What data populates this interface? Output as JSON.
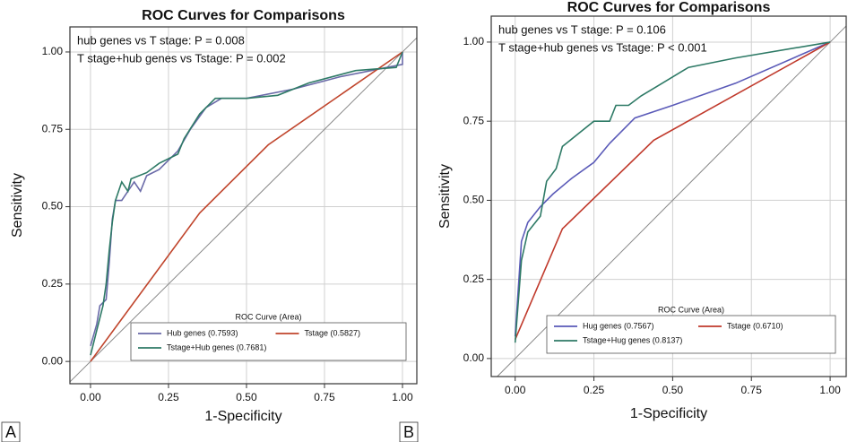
{
  "chart_data": [
    {
      "type": "line",
      "panel_label": "A",
      "title": "ROC Curves for Comparisons",
      "xlabel": "1-Specificity",
      "ylabel": "Sensitivity",
      "annotations": [
        "hub genes vs T stage: P = 0.008",
        "T stage+hub genes vs Tstage: P = 0.002"
      ],
      "legend_title": "ROC Curve (Area)",
      "grid": true,
      "legend": "lower right",
      "xlim": [
        -0.066,
        1.046
      ],
      "ylim": [
        -0.072,
        1.081
      ],
      "xticks": [
        {
          "value": 0,
          "label": "0.00"
        },
        {
          "value": 0.25,
          "label": "0.25"
        },
        {
          "value": 0.5,
          "label": "0.50"
        },
        {
          "value": 0.75,
          "label": "0.75"
        },
        {
          "value": 1,
          "label": "1.00"
        }
      ],
      "yticks": [
        {
          "value": 0,
          "label": "0.00"
        },
        {
          "value": 0.25,
          "label": "0.25"
        },
        {
          "value": 0.5,
          "label": "0.50"
        },
        {
          "value": 0.75,
          "label": "0.75"
        },
        {
          "value": 1,
          "label": "1.00"
        }
      ],
      "series": [
        {
          "name": "Hub genes (0.7593)",
          "color": "#6a6aa8",
          "x": [
            0,
            0.02,
            0.03,
            0.05,
            0.06,
            0.07,
            0.08,
            0.1,
            0.12,
            0.14,
            0.16,
            0.18,
            0.22,
            0.28,
            0.32,
            0.37,
            0.42,
            0.5,
            0.65,
            0.8,
            0.95,
            1,
            1
          ],
          "values": [
            0.05,
            0.12,
            0.18,
            0.2,
            0.32,
            0.46,
            0.52,
            0.52,
            0.55,
            0.58,
            0.55,
            0.6,
            0.62,
            0.68,
            0.75,
            0.82,
            0.85,
            0.85,
            0.88,
            0.92,
            0.95,
            0.96,
            1
          ]
        },
        {
          "name": "Tstage (0.5827)",
          "color": "#c0452c",
          "x": [
            0,
            0.35,
            0.57,
            1
          ],
          "values": [
            0,
            0.48,
            0.7,
            1
          ]
        },
        {
          "name": "Tstage+Hub genes (0.7681)",
          "color": "#2e7a66",
          "x": [
            0,
            0.02,
            0.04,
            0.05,
            0.06,
            0.07,
            0.08,
            0.1,
            0.12,
            0.13,
            0.18,
            0.22,
            0.28,
            0.3,
            0.35,
            0.4,
            0.5,
            0.6,
            0.7,
            0.85,
            0.98,
            1
          ],
          "values": [
            0.02,
            0.1,
            0.18,
            0.25,
            0.36,
            0.45,
            0.52,
            0.58,
            0.55,
            0.59,
            0.61,
            0.64,
            0.67,
            0.72,
            0.8,
            0.85,
            0.85,
            0.86,
            0.9,
            0.94,
            0.95,
            1
          ]
        }
      ]
    },
    {
      "type": "line",
      "panel_label": "B",
      "title": "ROC Curves for Comparisons",
      "xlabel": "1-Specificity",
      "ylabel": "Sensitivity",
      "annotations": [
        "hub genes vs T stage: P = 0.106",
        "T stage+hub genes vs Tstage: P < 0.001"
      ],
      "legend_title": "ROC Curve (Area)",
      "grid": true,
      "legend": "lower right",
      "xlim": [
        -0.076,
        1.051
      ],
      "ylim": [
        -0.057,
        1.082
      ],
      "xticks": [
        {
          "value": 0,
          "label": "0.00"
        },
        {
          "value": 0.25,
          "label": "0.25"
        },
        {
          "value": 0.5,
          "label": "0.50"
        },
        {
          "value": 0.75,
          "label": "0.75"
        },
        {
          "value": 1,
          "label": "1.00"
        }
      ],
      "yticks": [
        {
          "value": 0,
          "label": "0.00"
        },
        {
          "value": 0.25,
          "label": "0.25"
        },
        {
          "value": 0.5,
          "label": "0.50"
        },
        {
          "value": 0.75,
          "label": "0.75"
        },
        {
          "value": 1,
          "label": "1.00"
        }
      ],
      "series": [
        {
          "name": "Hug genes (0.7567)",
          "color": "#5a5ab8",
          "x": [
            0,
            0.02,
            0.04,
            0.08,
            0.12,
            0.18,
            0.25,
            0.3,
            0.38,
            0.5,
            0.7,
            1
          ],
          "values": [
            0.07,
            0.37,
            0.43,
            0.48,
            0.52,
            0.57,
            0.62,
            0.68,
            0.76,
            0.8,
            0.87,
            1
          ]
        },
        {
          "name": "Tstage (0.6710)",
          "color": "#c0392b",
          "x": [
            0,
            0.15,
            0.44,
            1
          ],
          "values": [
            0.06,
            0.41,
            0.69,
            1
          ]
        },
        {
          "name": "Tstage+Hug genes (0.8137)",
          "color": "#2e7a66",
          "x": [
            0,
            0.02,
            0.04,
            0.08,
            0.1,
            0.13,
            0.15,
            0.2,
            0.25,
            0.3,
            0.32,
            0.36,
            0.4,
            0.45,
            0.55,
            0.7,
            1
          ],
          "values": [
            0.05,
            0.31,
            0.4,
            0.45,
            0.56,
            0.6,
            0.67,
            0.71,
            0.75,
            0.75,
            0.8,
            0.8,
            0.83,
            0.86,
            0.92,
            0.95,
            1
          ]
        }
      ]
    }
  ]
}
